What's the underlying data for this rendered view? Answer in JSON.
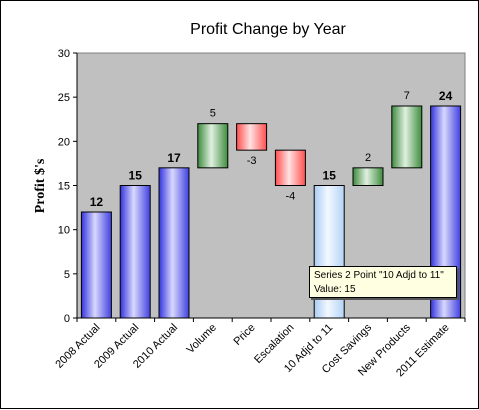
{
  "chart_data": {
    "type": "bar",
    "title": "Profit Change by Year",
    "ylabel": "Profit $'s",
    "xlabel": "",
    "ylim": [
      0,
      30
    ],
    "yticks": [
      0,
      5,
      10,
      15,
      20,
      25,
      30
    ],
    "grid": false,
    "legend": "none",
    "categories": [
      "2008 Actual",
      "2009 Actual",
      "2010 Actual",
      "Volume",
      "Price",
      "Escalation",
      "10 Adjd to 11",
      "Cost Savings",
      "New Products",
      "2011 Estimate"
    ],
    "bars": [
      {
        "category": "2008 Actual",
        "kind": "total",
        "start": 0,
        "end": 12,
        "label": "12"
      },
      {
        "category": "2009 Actual",
        "kind": "total",
        "start": 0,
        "end": 15,
        "label": "15"
      },
      {
        "category": "2010 Actual",
        "kind": "total",
        "start": 0,
        "end": 17,
        "label": "17"
      },
      {
        "category": "Volume",
        "kind": "increase",
        "start": 17,
        "end": 22,
        "label": "5"
      },
      {
        "category": "Price",
        "kind": "decrease",
        "start": 22,
        "end": 19,
        "label": "-3"
      },
      {
        "category": "Escalation",
        "kind": "decrease",
        "start": 19,
        "end": 15,
        "label": "-4"
      },
      {
        "category": "10 Adjd to 11",
        "kind": "subtotal",
        "start": 0,
        "end": 15,
        "label": "15"
      },
      {
        "category": "Cost Savings",
        "kind": "increase",
        "start": 15,
        "end": 17,
        "label": "2"
      },
      {
        "category": "New Products",
        "kind": "increase",
        "start": 17,
        "end": 24,
        "label": "7"
      },
      {
        "category": "2011 Estimate",
        "kind": "total",
        "start": 0,
        "end": 24,
        "label": "24"
      }
    ],
    "tooltip": {
      "line1": "Series 2 Point \"10 Adjd to 11\"",
      "line2": "Value: 15"
    },
    "colors": {
      "plot_background": "#c0c0c0",
      "total": "#6666ff",
      "subtotal": "#cce4ff",
      "increase": "#5a9e5a",
      "decrease": "#ff6666"
    }
  }
}
